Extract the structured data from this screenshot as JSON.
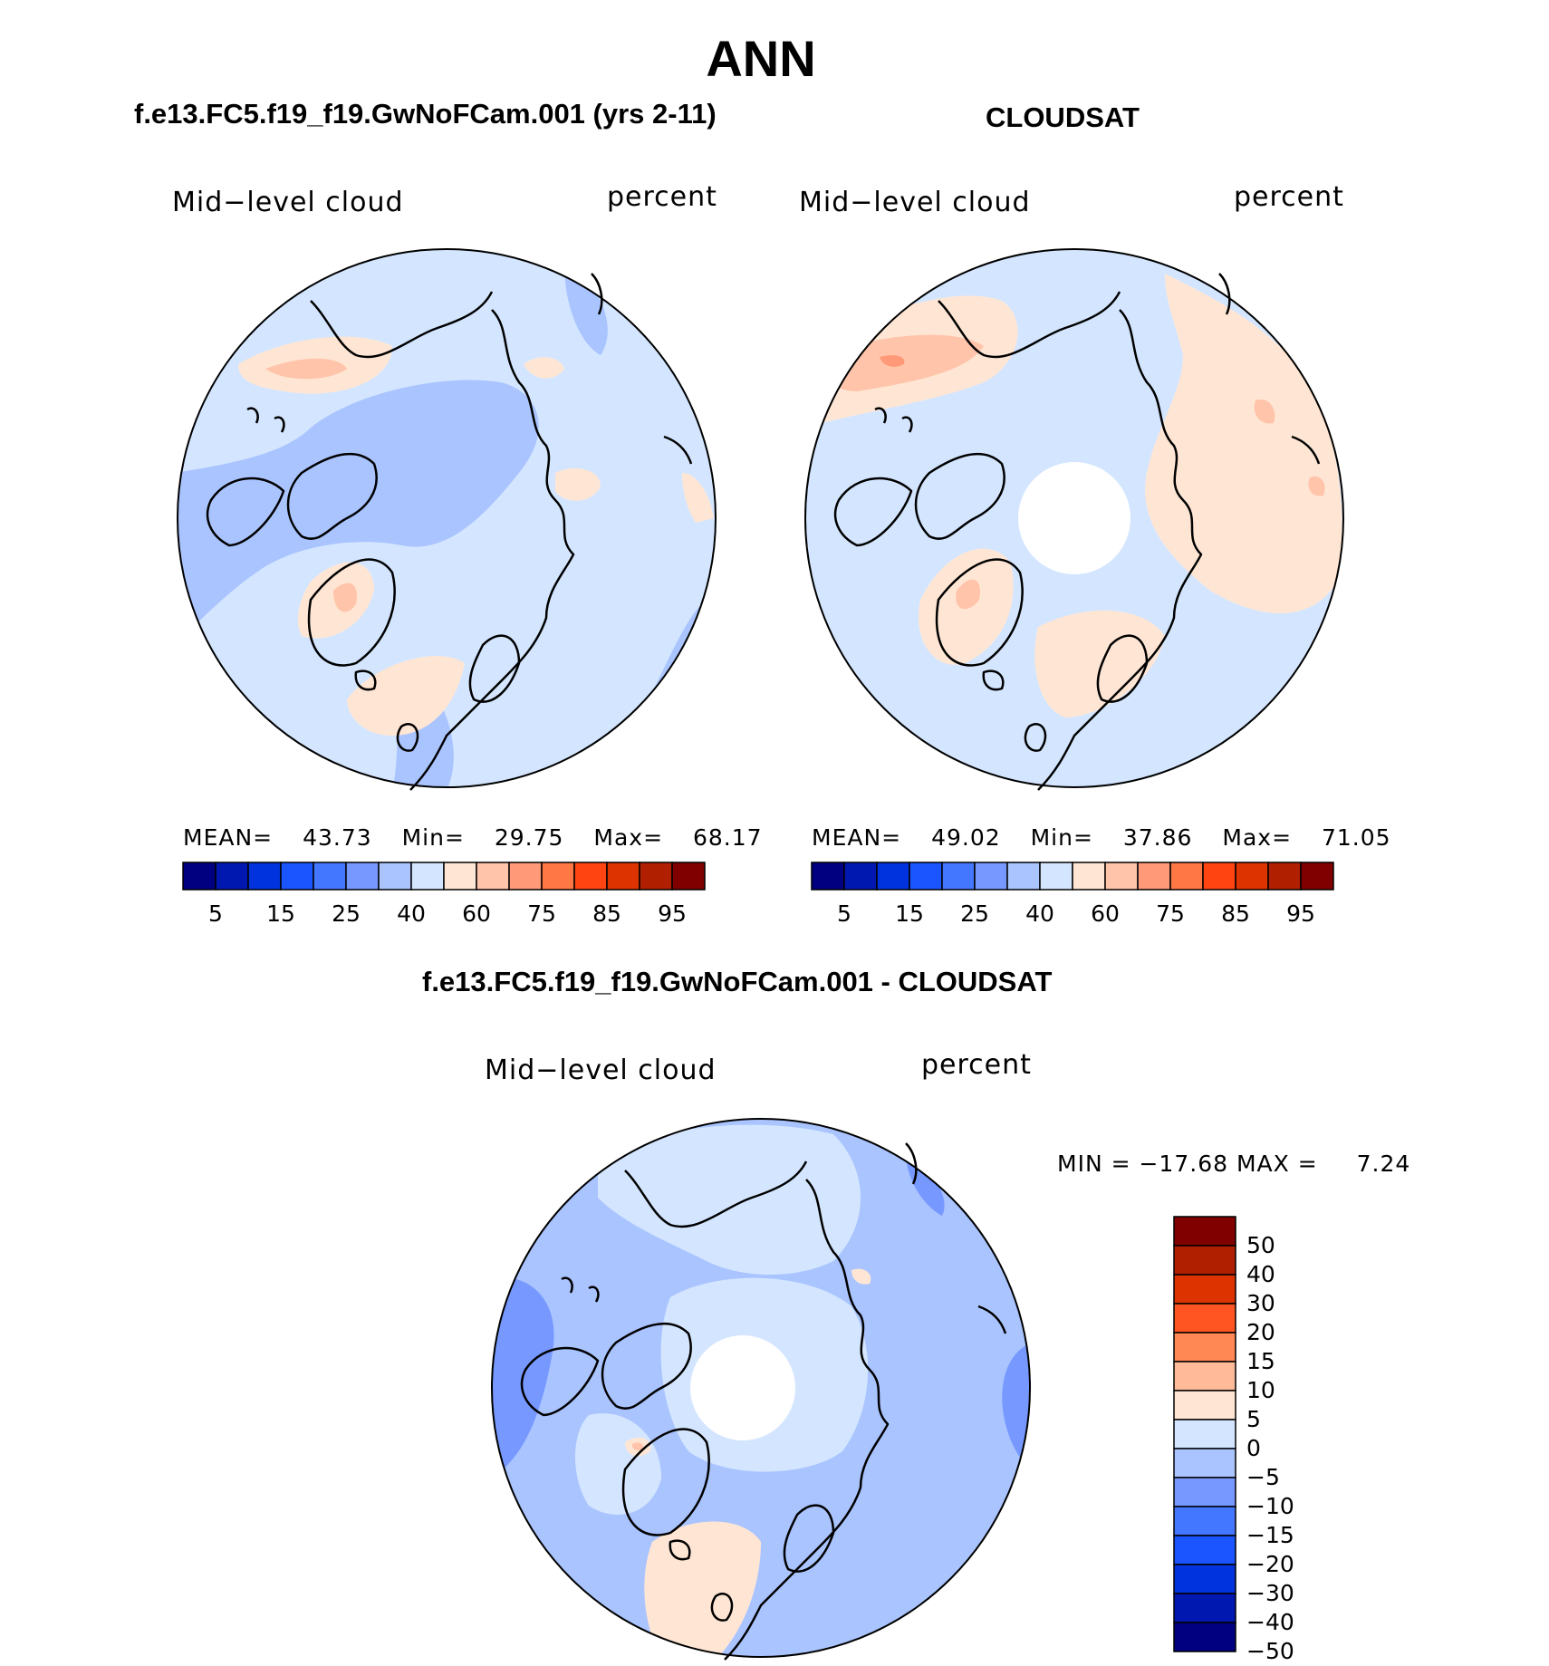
{
  "figure": {
    "title": "ANN",
    "left_subtitle": "f.e13.FC5.f19_f19.GwNoFCam.001 (yrs 2-11)",
    "right_subtitle": "CLOUDSAT",
    "diff_subtitle": "f.e13.FC5.f19_f19.GwNoFCam.001 - CLOUDSAT"
  },
  "panels": {
    "model": {
      "variable_label": "Mid−level cloud",
      "units_label": "percent",
      "stats": {
        "mean_label": "MEAN=",
        "mean": "43.73",
        "min_label": "Min=",
        "min": "29.75",
        "max_label": "Max=",
        "max": "68.17"
      }
    },
    "obs": {
      "variable_label": "Mid−level cloud",
      "units_label": "percent",
      "stats": {
        "mean_label": "MEAN=",
        "mean": "49.02",
        "min_label": "Min=",
        "min": "37.86",
        "max_label": "Max=",
        "max": "71.05"
      }
    },
    "diff": {
      "variable_label": "Mid−level cloud",
      "units_label": "percent",
      "stats_text": "MIN = −17.68 MAX =",
      "max_value": "7.24"
    }
  },
  "colorbars": {
    "abs_colors": [
      "#000080",
      "#0018b0",
      "#0033dd",
      "#1a55ff",
      "#4477ff",
      "#7799ff",
      "#aac4ff",
      "#d4e6ff",
      "#ffe6d4",
      "#ffc4aa",
      "#ff9977",
      "#ff7744",
      "#ff4411",
      "#dd3300",
      "#b02000",
      "#800000"
    ],
    "abs_ticks": [
      "5",
      "15",
      "25",
      "40",
      "60",
      "75",
      "85",
      "95"
    ],
    "diff_colors": [
      "#800000",
      "#b02000",
      "#dd3300",
      "#ff5522",
      "#ff8855",
      "#ffbb99",
      "#ffe6d4",
      "#d4e6ff",
      "#aac4ff",
      "#7799ff",
      "#4477ff",
      "#1a55ff",
      "#0033dd",
      "#0018b0",
      "#000080"
    ],
    "diff_ticks": [
      "50",
      "40",
      "30",
      "20",
      "15",
      "10",
      "5",
      "0",
      "−5",
      "−10",
      "−15",
      "−20",
      "−30",
      "−40",
      "−50"
    ]
  },
  "map_colors": {
    "light_blue": "#d4e6ff",
    "mid_blue": "#aac4ff",
    "blue": "#7799ff",
    "peach": "#ffe6d4",
    "salmon": "#ffc4aa",
    "orange": "#ff9977",
    "missing": "#ffffff"
  }
}
